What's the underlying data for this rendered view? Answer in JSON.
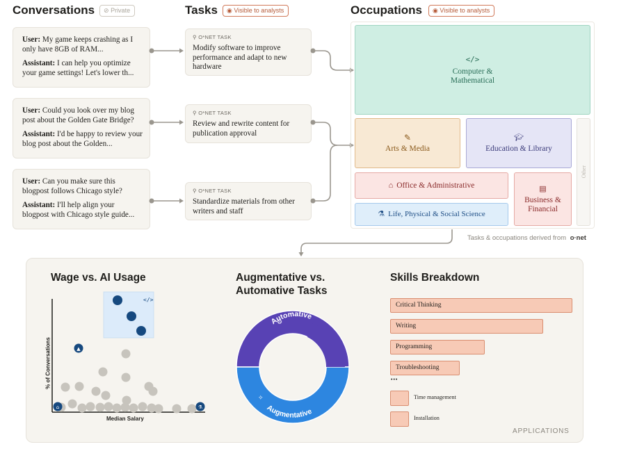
{
  "headers": {
    "conversations": "Conversations",
    "conversations_badge": "Private",
    "tasks": "Tasks",
    "tasks_badge": "Visible to analysts",
    "occupations": "Occupations",
    "occupations_badge": "Visible to analysts"
  },
  "conversations": [
    {
      "user_label": "User:",
      "user_text": " My game keeps crashing as I only have 8GB of RAM...",
      "assistant_label": "Assistant:",
      "assistant_text": " I can help you optimize your game settings! Let's lower th..."
    },
    {
      "user_label": "User:",
      "user_text": "  Could you look over my blog post about the Golden Gate Bridge?",
      "assistant_label": "Assistant:",
      "assistant_text": " I'd be happy to review your blog post about the Golden..."
    },
    {
      "user_label": "User:",
      "user_text": " Can you make sure this blogpost follows Chicago style?",
      "assistant_label": "Assistant:",
      "assistant_text": " I'll help align your blogpost with Chicago style guide..."
    }
  ],
  "tasks": [
    {
      "label": "O*NET TASK",
      "text": "Modify software to improve performance and adapt to new hardware"
    },
    {
      "label": "O*NET TASK",
      "text": "Review and rewrite content for publication approval"
    },
    {
      "label": "O*NET TASK",
      "text": "Standardize materials from other writers and staff"
    }
  ],
  "occupations": {
    "computer": {
      "label": "Computer & Mathematical",
      "icon": "code-icon",
      "color": "#cfeee3",
      "text_color": "#2a6e58"
    },
    "arts": {
      "label": "Arts & Media",
      "icon": "brush-icon",
      "color": "#f8e9d4",
      "text_color": "#8a5a1c"
    },
    "education": {
      "label": "Education & Library",
      "icon": "graduation-cap-icon",
      "color": "#e5e5f6",
      "text_color": "#3a3a7a"
    },
    "other": {
      "label": "Other"
    },
    "office": {
      "label": "Office & Administrative",
      "icon": "building-icon",
      "color": "#fbe5e3",
      "text_color": "#8a2a2a"
    },
    "business": {
      "label": "Business & Financial",
      "icon": "ledger-icon",
      "color": "#fbe5e3",
      "text_color": "#8a2a2a"
    },
    "science": {
      "label": "Life, Physical & Social Science",
      "icon": "flask-icon",
      "color": "#dfeefa",
      "text_color": "#1f4f86"
    }
  },
  "footnote": {
    "text": "Tasks & occupations derived from",
    "brand": "o·net"
  },
  "panels": {
    "wage_title": "Wage vs. AI Usage",
    "wage_ylabel": "% of Conversations",
    "wage_xlabel": "Median Salary",
    "augment_title": "Augmentative vs. Automative Tasks",
    "automative_label": "Automative",
    "augmentative_label": "Augmentative",
    "skills_title": "Skills Breakdown",
    "applications": "APPLICATIONS"
  },
  "skills": [
    {
      "name": "Critical Thinking",
      "share": 1.0
    },
    {
      "name": "Writing",
      "share": 0.84
    },
    {
      "name": "Programming",
      "share": 0.52
    },
    {
      "name": "Troubleshooting",
      "share": 0.38
    }
  ],
  "skills_ellipsis": "•••",
  "skills_minor": [
    {
      "name": "Time management"
    },
    {
      "name": "Installation"
    }
  ],
  "colors": {
    "accent_blue": "#16497f",
    "automative": "#5842b4",
    "augmentative": "#2d86e0",
    "skill_fill": "#f7cab6"
  }
}
